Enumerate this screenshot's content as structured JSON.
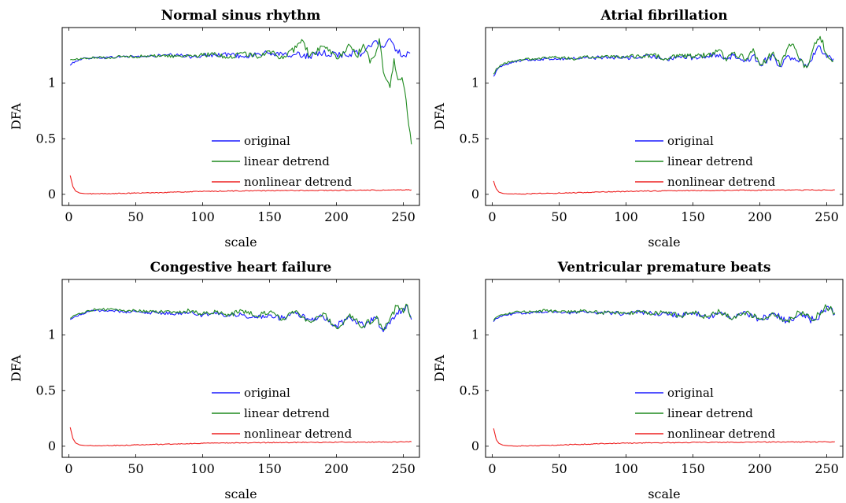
{
  "figure": {
    "colors": {
      "original": "#1a1aff",
      "linear": "#1f8a1f",
      "nonlinear": "#ee2020"
    }
  },
  "chart_data": [
    {
      "type": "line",
      "title": "Normal sinus rhythm",
      "xlabel": "scale",
      "ylabel": "DFA",
      "xlim": [
        -5,
        262
      ],
      "ylim": [
        -0.1,
        1.5
      ],
      "xticks": [
        0,
        50,
        100,
        150,
        200,
        250
      ],
      "yticks": [
        0,
        0.5,
        1
      ],
      "ytick_labels": [
        "0",
        "0.5",
        "1"
      ],
      "grid": false,
      "legend_position": "center-right",
      "series": [
        {
          "name": "original",
          "color": "#1a1aff",
          "x": [
            1,
            5,
            10,
            20,
            30,
            40,
            50,
            60,
            70,
            80,
            90,
            100,
            110,
            120,
            130,
            140,
            150,
            160,
            170,
            180,
            190,
            200,
            210,
            220,
            225,
            230,
            235,
            240,
            245,
            250,
            255
          ],
          "y": [
            1.16,
            1.2,
            1.22,
            1.23,
            1.23,
            1.24,
            1.24,
            1.24,
            1.25,
            1.25,
            1.24,
            1.25,
            1.25,
            1.26,
            1.24,
            1.26,
            1.27,
            1.25,
            1.26,
            1.24,
            1.27,
            1.26,
            1.26,
            1.27,
            1.33,
            1.38,
            1.32,
            1.4,
            1.3,
            1.25,
            1.27
          ]
        },
        {
          "name": "linear detrend",
          "color": "#1f8a1f",
          "x": [
            1,
            10,
            20,
            30,
            40,
            50,
            60,
            70,
            80,
            90,
            100,
            110,
            120,
            130,
            140,
            150,
            160,
            170,
            175,
            180,
            190,
            200,
            210,
            215,
            220,
            225,
            230,
            232,
            235,
            238,
            240,
            243,
            246,
            249,
            252,
            254,
            256
          ],
          "y": [
            1.21,
            1.22,
            1.23,
            1.23,
            1.24,
            1.24,
            1.24,
            1.25,
            1.24,
            1.25,
            1.25,
            1.26,
            1.23,
            1.27,
            1.24,
            1.29,
            1.22,
            1.32,
            1.38,
            1.24,
            1.33,
            1.22,
            1.34,
            1.24,
            1.35,
            1.18,
            1.3,
            1.4,
            1.1,
            1.02,
            0.96,
            1.22,
            1.03,
            1.05,
            0.85,
            0.62,
            0.45
          ]
        },
        {
          "name": "nonlinear detrend",
          "color": "#ee2020",
          "x": [
            1,
            2,
            3,
            5,
            8,
            12,
            20,
            40,
            60,
            80,
            100,
            120,
            140,
            160,
            180,
            200,
            220,
            240,
            250,
            256
          ],
          "y": [
            0.17,
            0.12,
            0.07,
            0.03,
            0.012,
            0.006,
            0.005,
            0.008,
            0.014,
            0.02,
            0.026,
            0.03,
            0.032,
            0.034,
            0.035,
            0.036,
            0.037,
            0.038,
            0.039,
            0.04
          ]
        }
      ]
    },
    {
      "type": "line",
      "title": "Atrial fibrillation",
      "xlabel": "scale",
      "ylabel": "DFA",
      "xlim": [
        -5,
        262
      ],
      "ylim": [
        -0.1,
        1.5
      ],
      "xticks": [
        0,
        50,
        100,
        150,
        200,
        250
      ],
      "yticks": [
        0,
        0.5,
        1
      ],
      "ytick_labels": [
        "0",
        "0.5",
        "1"
      ],
      "grid": false,
      "legend_position": "center-right",
      "series": [
        {
          "name": "original",
          "color": "#1a1aff",
          "x": [
            1,
            3,
            6,
            10,
            15,
            20,
            30,
            40,
            50,
            60,
            70,
            80,
            90,
            100,
            110,
            120,
            130,
            140,
            150,
            160,
            170,
            175,
            180,
            190,
            195,
            200,
            210,
            215,
            220,
            230,
            235,
            240,
            245,
            250,
            255
          ],
          "y": [
            1.06,
            1.11,
            1.15,
            1.17,
            1.19,
            1.2,
            1.21,
            1.22,
            1.22,
            1.22,
            1.23,
            1.23,
            1.23,
            1.23,
            1.23,
            1.24,
            1.22,
            1.24,
            1.23,
            1.24,
            1.26,
            1.22,
            1.25,
            1.2,
            1.25,
            1.17,
            1.25,
            1.15,
            1.24,
            1.22,
            1.14,
            1.27,
            1.33,
            1.23,
            1.22
          ]
        },
        {
          "name": "linear detrend",
          "color": "#1f8a1f",
          "x": [
            1,
            3,
            6,
            10,
            15,
            20,
            30,
            40,
            50,
            60,
            70,
            80,
            90,
            100,
            110,
            120,
            130,
            140,
            150,
            160,
            170,
            175,
            180,
            190,
            195,
            200,
            210,
            215,
            220,
            225,
            230,
            235,
            240,
            245,
            250,
            255
          ],
          "y": [
            1.08,
            1.13,
            1.16,
            1.18,
            1.2,
            1.21,
            1.22,
            1.23,
            1.23,
            1.22,
            1.24,
            1.23,
            1.24,
            1.24,
            1.24,
            1.25,
            1.22,
            1.26,
            1.24,
            1.25,
            1.3,
            1.2,
            1.27,
            1.22,
            1.31,
            1.16,
            1.28,
            1.15,
            1.3,
            1.35,
            1.2,
            1.14,
            1.32,
            1.42,
            1.26,
            1.2
          ]
        },
        {
          "name": "nonlinear detrend",
          "color": "#ee2020",
          "x": [
            1,
            2,
            3,
            5,
            8,
            12,
            20,
            40,
            60,
            80,
            100,
            120,
            140,
            160,
            180,
            200,
            220,
            240,
            250,
            256
          ],
          "y": [
            0.12,
            0.08,
            0.05,
            0.02,
            0.008,
            0.004,
            0.004,
            0.008,
            0.014,
            0.02,
            0.026,
            0.03,
            0.033,
            0.035,
            0.036,
            0.037,
            0.038,
            0.039,
            0.039,
            0.04
          ]
        }
      ]
    },
    {
      "type": "line",
      "title": "Congestive heart failure",
      "xlabel": "scale",
      "ylabel": "DFA",
      "xlim": [
        -5,
        262
      ],
      "ylim": [
        -0.1,
        1.5
      ],
      "xticks": [
        0,
        50,
        100,
        150,
        200,
        250
      ],
      "yticks": [
        0,
        0.5,
        1
      ],
      "ytick_labels": [
        "0",
        "0.5",
        "1"
      ],
      "grid": false,
      "legend_position": "center-right",
      "series": [
        {
          "name": "original",
          "color": "#1a1aff",
          "x": [
            1,
            5,
            10,
            15,
            20,
            30,
            40,
            50,
            60,
            70,
            80,
            90,
            100,
            110,
            120,
            130,
            140,
            150,
            160,
            170,
            180,
            190,
            200,
            210,
            220,
            230,
            235,
            240,
            245,
            250,
            253,
            256
          ],
          "y": [
            1.14,
            1.17,
            1.19,
            1.21,
            1.22,
            1.22,
            1.21,
            1.21,
            1.2,
            1.2,
            1.19,
            1.2,
            1.18,
            1.19,
            1.17,
            1.18,
            1.16,
            1.18,
            1.15,
            1.19,
            1.14,
            1.17,
            1.08,
            1.16,
            1.09,
            1.15,
            1.03,
            1.1,
            1.2,
            1.24,
            1.26,
            1.14
          ]
        },
        {
          "name": "linear detrend",
          "color": "#1f8a1f",
          "x": [
            1,
            5,
            10,
            15,
            20,
            30,
            40,
            50,
            60,
            70,
            80,
            90,
            100,
            110,
            120,
            130,
            140,
            150,
            160,
            170,
            180,
            190,
            200,
            210,
            220,
            230,
            235,
            240,
            245,
            250,
            253,
            256
          ],
          "y": [
            1.15,
            1.18,
            1.2,
            1.22,
            1.23,
            1.23,
            1.22,
            1.22,
            1.21,
            1.21,
            1.2,
            1.22,
            1.19,
            1.21,
            1.18,
            1.22,
            1.17,
            1.21,
            1.15,
            1.22,
            1.12,
            1.2,
            1.06,
            1.19,
            1.08,
            1.17,
            1.05,
            1.15,
            1.26,
            1.2,
            1.27,
            1.16
          ]
        },
        {
          "name": "nonlinear detrend",
          "color": "#ee2020",
          "x": [
            1,
            2,
            3,
            5,
            8,
            12,
            20,
            40,
            60,
            80,
            100,
            120,
            140,
            160,
            180,
            200,
            220,
            240,
            250,
            256
          ],
          "y": [
            0.17,
            0.12,
            0.07,
            0.03,
            0.012,
            0.006,
            0.005,
            0.008,
            0.014,
            0.02,
            0.026,
            0.03,
            0.032,
            0.034,
            0.035,
            0.036,
            0.037,
            0.038,
            0.039,
            0.04
          ]
        }
      ]
    },
    {
      "type": "line",
      "title": "Ventricular premature beats",
      "xlabel": "scale",
      "ylabel": "DFA",
      "xlim": [
        -5,
        262
      ],
      "ylim": [
        -0.1,
        1.5
      ],
      "xticks": [
        0,
        50,
        100,
        150,
        200,
        250
      ],
      "yticks": [
        0,
        0.5,
        1
      ],
      "ytick_labels": [
        "0",
        "0.5",
        "1"
      ],
      "grid": false,
      "legend_position": "center-right",
      "series": [
        {
          "name": "original",
          "color": "#1a1aff",
          "x": [
            1,
            3,
            6,
            10,
            15,
            20,
            30,
            40,
            50,
            60,
            70,
            80,
            90,
            100,
            110,
            120,
            130,
            140,
            150,
            160,
            170,
            180,
            190,
            200,
            210,
            220,
            230,
            240,
            248,
            252,
            256
          ],
          "y": [
            1.12,
            1.15,
            1.17,
            1.18,
            1.19,
            1.2,
            1.2,
            1.21,
            1.21,
            1.2,
            1.21,
            1.2,
            1.2,
            1.19,
            1.21,
            1.19,
            1.2,
            1.17,
            1.2,
            1.16,
            1.2,
            1.15,
            1.2,
            1.14,
            1.19,
            1.13,
            1.19,
            1.13,
            1.22,
            1.23,
            1.19
          ]
        },
        {
          "name": "linear detrend",
          "color": "#1f8a1f",
          "x": [
            1,
            3,
            6,
            10,
            15,
            20,
            30,
            40,
            50,
            60,
            70,
            80,
            90,
            100,
            110,
            120,
            130,
            140,
            150,
            160,
            170,
            180,
            190,
            200,
            210,
            220,
            230,
            240,
            248,
            252,
            256
          ],
          "y": [
            1.13,
            1.16,
            1.18,
            1.19,
            1.2,
            1.21,
            1.21,
            1.22,
            1.21,
            1.21,
            1.22,
            1.2,
            1.21,
            1.19,
            1.22,
            1.19,
            1.21,
            1.17,
            1.21,
            1.16,
            1.21,
            1.15,
            1.21,
            1.14,
            1.2,
            1.13,
            1.2,
            1.13,
            1.24,
            1.24,
            1.2
          ]
        },
        {
          "name": "nonlinear detrend",
          "color": "#ee2020",
          "x": [
            1,
            2,
            3,
            5,
            8,
            12,
            20,
            40,
            60,
            80,
            100,
            120,
            140,
            160,
            180,
            200,
            220,
            240,
            250,
            256
          ],
          "y": [
            0.16,
            0.11,
            0.06,
            0.025,
            0.01,
            0.004,
            0.003,
            0.008,
            0.015,
            0.022,
            0.028,
            0.031,
            0.033,
            0.035,
            0.036,
            0.037,
            0.038,
            0.039,
            0.039,
            0.04
          ]
        }
      ]
    }
  ]
}
